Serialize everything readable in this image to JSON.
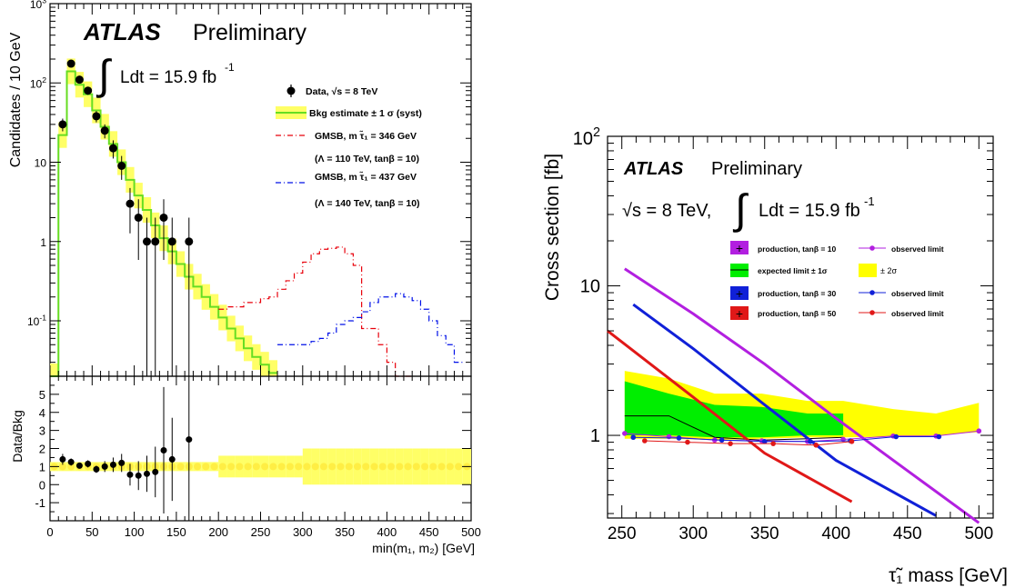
{
  "chart_data": [
    {
      "type": "line",
      "title": "",
      "brand": "ATLAS",
      "status": "Preliminary",
      "lumi": {
        "symbol": "∫",
        "text": "Ldt = 15.9 fb",
        "sup": "-1"
      },
      "xlabel": "min(m₁, m₂) [GeV]",
      "ylabel": "Candidates / 10 GeV",
      "xlim": [
        0,
        500
      ],
      "ylim": [
        0.02,
        1000
      ],
      "log_y": true,
      "x_ticks": [
        "0",
        "50",
        "100",
        "150",
        "200",
        "250",
        "300",
        "350",
        "400",
        "450",
        "500"
      ],
      "y_ticks": [
        {
          "v": 0.1,
          "base": "10",
          "sup": "-1"
        },
        {
          "v": 1,
          "text": "1"
        },
        {
          "v": 10,
          "text": "10"
        },
        {
          "v": 100,
          "base": "10",
          "sup": "2"
        },
        {
          "v": 1000,
          "base": "10",
          "sup": "3"
        }
      ],
      "legend": [
        {
          "style": "points",
          "label": "Data, √s = 8 TeV"
        },
        {
          "style": "band",
          "label": "Bkg estimate ± 1 σ (syst)"
        },
        {
          "style": "red-dashdot",
          "label": "GMSB, m τ̃₁ = 346 GeV",
          "sub": "(Λ = 110 TeV, tanβ = 10)"
        },
        {
          "style": "blue-dashdot",
          "label": "GMSB, m τ̃₁ = 437 GeV",
          "sub": "(Λ = 140 TeV, tanβ = 10)"
        }
      ],
      "series": [
        {
          "name": "Data, √s = 8 TeV",
          "kind": "points",
          "x": [
            15,
            25,
            35,
            45,
            55,
            65,
            75,
            85,
            95,
            105,
            115,
            125,
            135,
            145,
            165
          ],
          "y": [
            30,
            175,
            110,
            80,
            38,
            25,
            15,
            9,
            3,
            2,
            1,
            1,
            2,
            1,
            1
          ]
        },
        {
          "name": "Bkg estimate ± 1 σ (syst)",
          "kind": "step",
          "edges": [
            0,
            10,
            20,
            30,
            40,
            50,
            60,
            70,
            80,
            90,
            100,
            110,
            120,
            130,
            140,
            150,
            160,
            170,
            180,
            190,
            200,
            210,
            220,
            230,
            240,
            250,
            260,
            270
          ],
          "y": [
            0.02,
            22,
            140,
            95,
            72,
            45,
            28,
            17,
            10,
            6,
            3.8,
            2.5,
            1.6,
            1.1,
            0.75,
            0.52,
            0.36,
            0.27,
            0.2,
            0.15,
            0.11,
            0.08,
            0.06,
            0.045,
            0.035,
            0.028,
            0.022
          ],
          "band": 0.45
        },
        {
          "name": "GMSB, m τ̃₁ = 346 GeV",
          "kind": "step",
          "color": "#e8000b",
          "edges": [
            200,
            210,
            220,
            230,
            240,
            250,
            260,
            270,
            280,
            290,
            300,
            310,
            320,
            330,
            340,
            350,
            360,
            370,
            380,
            390,
            400,
            410,
            420,
            430
          ],
          "y": [
            0.14,
            0.15,
            0.15,
            0.17,
            0.17,
            0.19,
            0.2,
            0.25,
            0.32,
            0.4,
            0.55,
            0.7,
            0.8,
            0.82,
            0.85,
            0.7,
            0.5,
            0.08,
            0.08,
            0.05,
            0.03,
            0.02,
            0.02
          ]
        },
        {
          "name": "GMSB, m τ̃₁ = 437 GeV",
          "kind": "step",
          "color": "#0010e8",
          "edges": [
            270,
            280,
            290,
            300,
            310,
            320,
            330,
            340,
            350,
            360,
            370,
            380,
            390,
            400,
            410,
            420,
            430,
            440,
            450,
            460,
            470,
            480,
            490
          ],
          "y": [
            0.05,
            0.05,
            0.05,
            0.05,
            0.055,
            0.06,
            0.07,
            0.09,
            0.1,
            0.11,
            0.13,
            0.17,
            0.2,
            0.2,
            0.22,
            0.2,
            0.18,
            0.14,
            0.1,
            0.065,
            0.05,
            0.03
          ]
        }
      ],
      "ratio": {
        "ylabel": "Data/Bkg",
        "ylim": [
          -2,
          6
        ],
        "y_ticks": [
          "-1",
          "0",
          "1",
          "2",
          "3",
          "4",
          "5"
        ],
        "x": [
          15,
          25,
          35,
          45,
          55,
          65,
          75,
          85,
          95,
          105,
          115,
          125,
          135,
          145,
          165
        ],
        "y": [
          1.4,
          1.25,
          1.05,
          1.15,
          0.85,
          1.0,
          1.1,
          1.2,
          0.55,
          0.5,
          0.6,
          0.7,
          1.9,
          1.4,
          2.5
        ],
        "err": [
          0.3,
          0.2,
          0.15,
          0.2,
          0.2,
          0.3,
          0.4,
          0.5,
          0.6,
          0.8,
          1.0,
          1.4,
          3.5,
          2.3,
          6.0
        ]
      }
    },
    {
      "type": "line",
      "title": "",
      "brand": "ATLAS",
      "status": "Preliminary",
      "energy": "√s = 8 TeV,",
      "lumi": {
        "symbol": "∫",
        "text": "Ldt = 15.9 fb",
        "sup": "-1"
      },
      "xlabel": "τ̃₁ mass [GeV]",
      "ylabel": "Cross section [fb]",
      "xlim": [
        240,
        510
      ],
      "ylim": [
        0.28,
        100
      ],
      "log_y": true,
      "x_ticks": [
        "250",
        "300",
        "350",
        "400",
        "450",
        "500"
      ],
      "y_ticks": [
        {
          "v": 1,
          "text": "1"
        },
        {
          "v": 10,
          "text": "10"
        },
        {
          "v": 100,
          "base": "10",
          "sup": "2"
        }
      ],
      "legend": [
        {
          "style": "magenta-box",
          "label": "production, tanβ = 10"
        },
        {
          "style": "magenta-dot",
          "label": "observed limit"
        },
        {
          "style": "green-box",
          "label": "expected limit ± 1σ"
        },
        {
          "style": "yellow-box",
          "label": "± 2σ"
        },
        {
          "style": "blue-box",
          "label": "production, tanβ = 30"
        },
        {
          "style": "blue-dot",
          "label": "observed limit"
        },
        {
          "style": "red-box",
          "label": "production, tanβ = 50"
        },
        {
          "style": "red-dot",
          "label": "observed limit"
        }
      ],
      "colors": {
        "tb10": "#b21fe0",
        "tb30": "#1020d8",
        "tb50": "#e01818",
        "green": "#00ee00",
        "yellow": "#ffff00"
      },
      "band_x": [
        252,
        283,
        315,
        348,
        380,
        405,
        440,
        470,
        500
      ],
      "band_2s_lo": [
        0.95,
        0.95,
        0.93,
        0.95,
        0.97,
        0.97,
        0.98,
        1.0,
        1.05
      ],
      "band_2s_hi": [
        2.7,
        2.4,
        1.9,
        1.9,
        1.7,
        1.7,
        1.5,
        1.4,
        1.65
      ],
      "band_1s_lo": [
        1.0,
        1.0,
        0.97,
        0.97,
        1.0,
        1.0,
        1.0,
        1.0,
        1.05
      ],
      "band_1s_hi": [
        2.3,
        1.9,
        1.6,
        1.55,
        1.4,
        1.4,
        1.3,
        1.25,
        1.4
      ],
      "expected": {
        "x": [
          252,
          283,
          315,
          348,
          380,
          405
        ],
        "y": [
          1.35,
          1.35,
          0.97,
          0.93,
          0.95,
          0.97
        ]
      },
      "series": [
        {
          "name": "production, tanβ = 10",
          "color_key": "tb10",
          "x": [
            252,
            300,
            350,
            400,
            450,
            500
          ],
          "y": [
            13,
            6.5,
            3.0,
            1.3,
            0.58,
            0.26
          ]
        },
        {
          "name": "production, tanβ = 30",
          "color_key": "tb30",
          "x": [
            258,
            300,
            350,
            400,
            470
          ],
          "y": [
            7.5,
            3.8,
            1.6,
            0.68,
            0.29
          ]
        },
        {
          "name": "production, tanβ = 50",
          "color_key": "tb50",
          "x": [
            240,
            300,
            350,
            411
          ],
          "y": [
            5.0,
            1.8,
            0.76,
            0.36
          ]
        },
        {
          "name": "observed limit",
          "color_key": "tb10",
          "x": [
            252,
            283,
            315,
            348,
            380,
            405,
            440,
            470,
            500
          ],
          "y": [
            1.03,
            0.98,
            0.93,
            0.92,
            0.91,
            0.94,
            0.99,
            0.99,
            1.07
          ]
        },
        {
          "name": "observed limit",
          "color_key": "tb30",
          "x": [
            258,
            290,
            320,
            350,
            382,
            410,
            442,
            472
          ],
          "y": [
            0.97,
            0.96,
            0.93,
            0.91,
            0.91,
            0.92,
            0.98,
            0.98
          ]
        },
        {
          "name": "observed limit",
          "color_key": "tb50",
          "x": [
            266,
            296,
            326,
            356,
            386,
            411
          ],
          "y": [
            0.92,
            0.9,
            0.88,
            0.88,
            0.86,
            0.91
          ]
        }
      ]
    }
  ]
}
